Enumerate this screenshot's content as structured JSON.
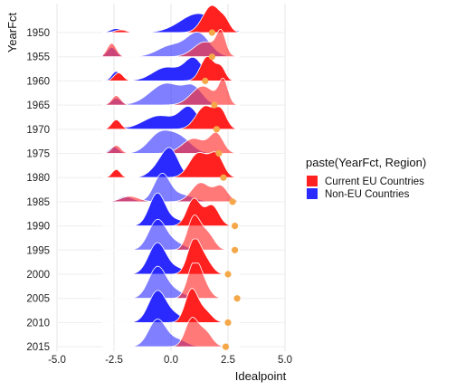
{
  "chart_data": {
    "type": "ridgeline",
    "xlabel": "Idealpoint",
    "ylabel": "YearFct",
    "xlim": [
      -5.0,
      5.0
    ],
    "x_ticks": [
      "-5.0",
      "-2.5",
      "0.0",
      "2.5",
      "5.0"
    ],
    "x_tick_values": [
      -5.0,
      -2.5,
      0.0,
      2.5,
      5.0
    ],
    "grid": true,
    "legend": {
      "title": "paste(YearFct, Region)",
      "placement": "right",
      "entries": [
        {
          "label": "Current EU Countries",
          "color": "#ff2020"
        },
        {
          "label": "Non-EU Countries",
          "color": "#2a2aff"
        }
      ]
    },
    "years": [
      "1950",
      "1955",
      "1960",
      "1965",
      "1970",
      "1975",
      "1980",
      "1985",
      "1990",
      "1995",
      "2000",
      "2005",
      "2010",
      "2015"
    ],
    "marker_color": "#f5a84a",
    "markers": [
      {
        "year": "1950",
        "x": 1.8
      },
      {
        "year": "1955",
        "x": 1.8
      },
      {
        "year": "1960",
        "x": 1.5
      },
      {
        "year": "1965",
        "x": 1.9
      },
      {
        "year": "1970",
        "x": 2.0
      },
      {
        "year": "1975",
        "x": 2.1
      },
      {
        "year": "1980",
        "x": 2.3
      },
      {
        "year": "1985",
        "x": 2.7
      },
      {
        "year": "1990",
        "x": 2.8
      },
      {
        "year": "1995",
        "x": 2.8
      },
      {
        "year": "2000",
        "x": 2.5
      },
      {
        "year": "2005",
        "x": 2.9
      },
      {
        "year": "2010",
        "x": 2.5
      },
      {
        "year": "2015",
        "x": 2.4
      }
    ],
    "series": [
      {
        "name": "Current EU Countries",
        "color": "#ff2020",
        "opacity": [
          1.0,
          0.6,
          1.0,
          0.6,
          1.0,
          0.6,
          1.0,
          0.6,
          1.0,
          0.6,
          1.0,
          0.6,
          1.0,
          0.6
        ],
        "components": [
          [
            [
              -2.2,
              0.25,
              0.1
            ],
            [
              1.8,
              0.4,
              1.0
            ],
            [
              2.4,
              0.2,
              0.25
            ]
          ],
          [
            [
              -2.6,
              0.2,
              0.5
            ],
            [
              1.5,
              0.5,
              0.55
            ],
            [
              2.2,
              0.2,
              0.8
            ]
          ],
          [
            [
              -2.3,
              0.2,
              0.3
            ],
            [
              1.6,
              0.3,
              0.9
            ],
            [
              2.2,
              0.2,
              0.45
            ]
          ],
          [
            [
              -2.4,
              0.2,
              0.35
            ],
            [
              1.4,
              0.5,
              0.7
            ],
            [
              2.3,
              0.2,
              0.85
            ]
          ],
          [
            [
              -2.4,
              0.2,
              0.35
            ],
            [
              1.5,
              0.4,
              0.85
            ],
            [
              2.2,
              0.25,
              0.6
            ]
          ],
          [
            [
              -2.4,
              0.2,
              0.3
            ],
            [
              1.0,
              0.5,
              0.55
            ],
            [
              2.0,
              0.3,
              0.7
            ]
          ],
          [
            [
              -2.4,
              0.18,
              0.3
            ],
            [
              1.2,
              0.4,
              0.9
            ],
            [
              2.0,
              0.3,
              0.8
            ]
          ],
          [
            [
              -1.8,
              0.4,
              0.2
            ],
            [
              1.3,
              0.4,
              0.7
            ],
            [
              2.2,
              0.3,
              0.55
            ]
          ],
          [
            [
              1.0,
              0.3,
              1.0
            ],
            [
              1.8,
              0.3,
              0.75
            ]
          ],
          [
            [
              1.0,
              0.28,
              1.2
            ],
            [
              1.6,
              0.3,
              0.6
            ]
          ],
          [
            [
              1.0,
              0.28,
              1.2
            ],
            [
              1.5,
              0.3,
              0.5
            ]
          ],
          [
            [
              1.0,
              0.28,
              1.2
            ],
            [
              1.4,
              0.3,
              0.5
            ]
          ],
          [
            [
              0.9,
              0.28,
              1.2
            ],
            [
              1.5,
              0.3,
              0.4
            ]
          ],
          [
            [
              0.9,
              0.28,
              1.0
            ],
            [
              1.5,
              0.3,
              0.55
            ]
          ]
        ]
      },
      {
        "name": "Non-EU Countries",
        "color": "#2a2aff",
        "opacity": [
          1.0,
          0.6,
          1.0,
          0.6,
          1.0,
          0.6,
          1.0,
          0.6,
          1.0,
          0.6,
          1.0,
          0.6,
          1.0,
          0.6
        ],
        "components": [
          [
            [
              -2.4,
              0.25,
              0.15
            ],
            [
              1.2,
              0.8,
              0.7
            ]
          ],
          [
            [
              -2.6,
              0.2,
              0.35
            ],
            [
              0.0,
              0.6,
              0.4
            ],
            [
              1.2,
              0.5,
              0.85
            ]
          ],
          [
            [
              -2.4,
              0.2,
              0.35
            ],
            [
              -0.2,
              0.6,
              0.5
            ],
            [
              1.0,
              0.4,
              0.8
            ]
          ],
          [
            [
              -2.4,
              0.2,
              0.25
            ],
            [
              -0.2,
              0.7,
              0.8
            ],
            [
              1.0,
              0.4,
              0.55
            ]
          ],
          [
            [
              -2.4,
              0.2,
              0.3
            ],
            [
              -0.5,
              0.7,
              0.5
            ],
            [
              0.8,
              0.4,
              0.75
            ]
          ],
          [
            [
              -2.5,
              0.2,
              0.25
            ],
            [
              -0.5,
              0.5,
              0.7
            ],
            [
              0.4,
              0.5,
              0.55
            ]
          ],
          [
            [
              -2.4,
              0.2,
              0.2
            ],
            [
              -0.5,
              0.4,
              0.4
            ],
            [
              0.0,
              0.35,
              0.9
            ]
          ],
          [
            [
              -2.0,
              0.3,
              0.2
            ],
            [
              -0.4,
              0.35,
              1.0
            ],
            [
              0.5,
              0.5,
              0.25
            ]
          ],
          [
            [
              -0.6,
              0.35,
              1.2
            ],
            [
              0.3,
              0.4,
              0.2
            ]
          ],
          [
            [
              -0.6,
              0.38,
              1.1
            ],
            [
              0.2,
              0.4,
              0.25
            ]
          ],
          [
            [
              -0.6,
              0.38,
              1.15
            ],
            [
              0.3,
              0.4,
              0.2
            ]
          ],
          [
            [
              -0.6,
              0.38,
              1.15
            ],
            [
              0.2,
              0.4,
              0.25
            ]
          ],
          [
            [
              -0.6,
              0.38,
              1.15
            ],
            [
              0.2,
              0.4,
              0.25
            ]
          ],
          [
            [
              -0.6,
              0.38,
              1.0
            ],
            [
              0.3,
              0.4,
              0.25
            ]
          ]
        ]
      }
    ]
  }
}
